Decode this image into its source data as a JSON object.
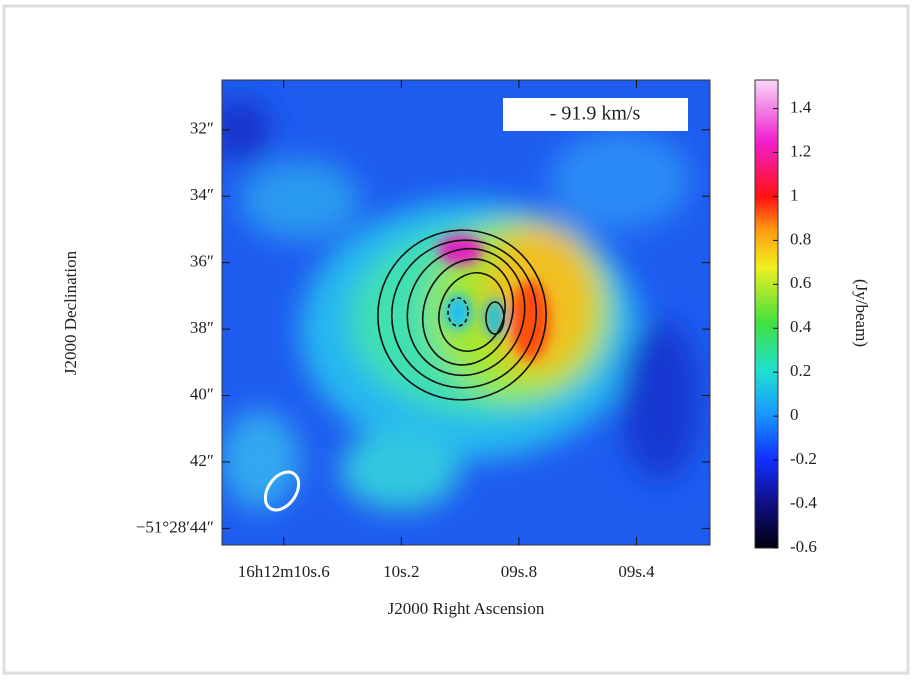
{
  "chart_data": {
    "type": "heatmap",
    "annotation": "- 91.9 km/s",
    "x_label": "J2000 Right Ascension",
    "y_label": "J2000 Declination",
    "colorbar_label": "(Jy/beam)",
    "xlim": [
      10.81,
      9.15
    ],
    "xticks": [
      {
        "value": 10.6,
        "label": "16h12m10s.6"
      },
      {
        "value": 10.2,
        "label": "10s.2"
      },
      {
        "value": 9.8,
        "label": "09s.8"
      },
      {
        "value": 9.4,
        "label": "09s.4"
      }
    ],
    "ylim": [
      30.5,
      44.5
    ],
    "yticks": [
      {
        "value": 32,
        "label": "32″"
      },
      {
        "value": 34,
        "label": "34″"
      },
      {
        "value": 36,
        "label": "36″"
      },
      {
        "value": 38,
        "label": "38″"
      },
      {
        "value": 40,
        "label": "40″"
      },
      {
        "value": 42,
        "label": "42″"
      },
      {
        "value": 44,
        "label": "−51°28′44″"
      }
    ],
    "clim": [
      -0.6,
      1.53
    ],
    "cticks": [
      -0.6,
      -0.4,
      -0.2,
      0,
      0.2,
      0.4,
      0.6,
      0.8,
      1,
      1.2,
      1.4
    ]
  }
}
